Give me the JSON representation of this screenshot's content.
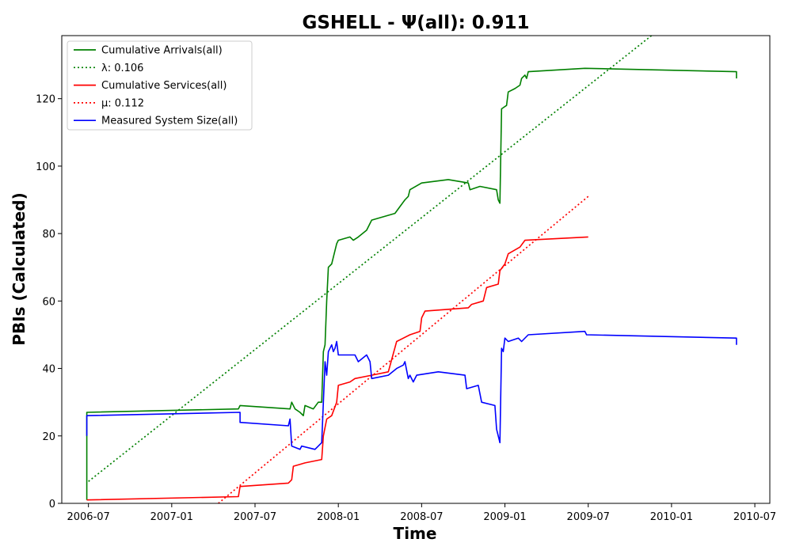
{
  "chart_data": {
    "type": "line",
    "title": "GSHELL -  Ψ(all): 0.911",
    "xlabel": "Time",
    "ylabel": "PBIs (Calculated)",
    "x_ticks": [
      "2006-07",
      "2007-01",
      "2007-07",
      "2008-01",
      "2008-07",
      "2009-01",
      "2009-07",
      "2010-01",
      "2010-07"
    ],
    "x_tick_values": [
      2006.5,
      2007.0,
      2007.5,
      2008.0,
      2008.5,
      2009.0,
      2009.5,
      2010.0,
      2010.5
    ],
    "xlim": [
      2006.34,
      2010.59
    ],
    "y_ticks": [
      0,
      20,
      40,
      60,
      80,
      100,
      120
    ],
    "ylim": [
      0,
      138.7
    ],
    "legend_position": "upper-left",
    "grid": false,
    "series": [
      {
        "name": "Cumulative Arrivals(all)",
        "color": "#008000",
        "style": "solid",
        "points": [
          [
            2006.49,
            1
          ],
          [
            2006.49,
            27
          ],
          [
            2007.4,
            28
          ],
          [
            2007.41,
            29
          ],
          [
            2007.71,
            28
          ],
          [
            2007.72,
            30
          ],
          [
            2007.74,
            28
          ],
          [
            2007.77,
            27
          ],
          [
            2007.79,
            26
          ],
          [
            2007.8,
            29
          ],
          [
            2007.85,
            28
          ],
          [
            2007.88,
            30
          ],
          [
            2007.9,
            30
          ],
          [
            2007.91,
            45
          ],
          [
            2007.92,
            47
          ],
          [
            2007.93,
            60
          ],
          [
            2007.94,
            70
          ],
          [
            2007.96,
            71
          ],
          [
            2007.97,
            73
          ],
          [
            2007.98,
            75
          ],
          [
            2007.99,
            77
          ],
          [
            2008.0,
            78
          ],
          [
            2008.07,
            79
          ],
          [
            2008.09,
            78
          ],
          [
            2008.12,
            79
          ],
          [
            2008.17,
            81
          ],
          [
            2008.2,
            84
          ],
          [
            2008.34,
            86
          ],
          [
            2008.37,
            88
          ],
          [
            2008.4,
            90
          ],
          [
            2008.42,
            91
          ],
          [
            2008.43,
            93
          ],
          [
            2008.5,
            95
          ],
          [
            2008.66,
            96
          ],
          [
            2008.78,
            95
          ],
          [
            2008.79,
            93
          ],
          [
            2008.85,
            94
          ],
          [
            2008.95,
            93
          ],
          [
            2008.96,
            90
          ],
          [
            2008.97,
            89
          ],
          [
            2008.98,
            117
          ],
          [
            2009.01,
            118
          ],
          [
            2009.02,
            122
          ],
          [
            2009.06,
            123
          ],
          [
            2009.09,
            124
          ],
          [
            2009.1,
            126
          ],
          [
            2009.12,
            127
          ],
          [
            2009.13,
            126
          ],
          [
            2009.14,
            128
          ],
          [
            2009.48,
            129
          ],
          [
            2010.39,
            128
          ],
          [
            2010.39,
            126
          ]
        ]
      },
      {
        "name": "λ: 0.106",
        "color": "#008000",
        "style": "dotted",
        "points": [
          [
            2006.5,
            6.5
          ],
          [
            2009.88,
            138.7
          ]
        ]
      },
      {
        "name": "Cumulative Services(all)",
        "color": "#ff0000",
        "style": "solid",
        "points": [
          [
            2006.49,
            1
          ],
          [
            2007.4,
            2
          ],
          [
            2007.41,
            5
          ],
          [
            2007.7,
            6
          ],
          [
            2007.72,
            7
          ],
          [
            2007.73,
            11
          ],
          [
            2007.8,
            12
          ],
          [
            2007.9,
            13
          ],
          [
            2007.91,
            20
          ],
          [
            2007.93,
            25
          ],
          [
            2007.96,
            26
          ],
          [
            2007.99,
            30
          ],
          [
            2008.0,
            35
          ],
          [
            2008.07,
            36
          ],
          [
            2008.1,
            37
          ],
          [
            2008.2,
            38
          ],
          [
            2008.3,
            39
          ],
          [
            2008.35,
            48
          ],
          [
            2008.43,
            50
          ],
          [
            2008.49,
            51
          ],
          [
            2008.5,
            55
          ],
          [
            2008.52,
            57
          ],
          [
            2008.78,
            58
          ],
          [
            2008.8,
            59
          ],
          [
            2008.87,
            60
          ],
          [
            2008.88,
            62
          ],
          [
            2008.89,
            64
          ],
          [
            2008.96,
            65
          ],
          [
            2008.97,
            69
          ],
          [
            2009.0,
            71
          ],
          [
            2009.02,
            74
          ],
          [
            2009.09,
            76
          ],
          [
            2009.12,
            78
          ],
          [
            2009.5,
            79
          ]
        ]
      },
      {
        "name": "μ: 0.112",
        "color": "#ff0000",
        "style": "dotted",
        "points": [
          [
            2007.28,
            0
          ],
          [
            2009.5,
            91
          ]
        ]
      },
      {
        "name": "Measured System Size(all)",
        "color": "#0000ff",
        "style": "solid",
        "points": [
          [
            2006.49,
            20
          ],
          [
            2006.49,
            26
          ],
          [
            2007.41,
            27
          ],
          [
            2007.41,
            24
          ],
          [
            2007.7,
            23
          ],
          [
            2007.71,
            25
          ],
          [
            2007.72,
            17
          ],
          [
            2007.77,
            16
          ],
          [
            2007.78,
            17
          ],
          [
            2007.86,
            16
          ],
          [
            2007.9,
            18
          ],
          [
            2007.91,
            30
          ],
          [
            2007.92,
            42
          ],
          [
            2007.93,
            38
          ],
          [
            2007.94,
            45
          ],
          [
            2007.96,
            47
          ],
          [
            2007.97,
            45
          ],
          [
            2007.98,
            46
          ],
          [
            2007.99,
            48
          ],
          [
            2008.0,
            44
          ],
          [
            2008.1,
            44
          ],
          [
            2008.12,
            42
          ],
          [
            2008.17,
            44
          ],
          [
            2008.19,
            42
          ],
          [
            2008.2,
            37
          ],
          [
            2008.3,
            38
          ],
          [
            2008.35,
            40
          ],
          [
            2008.39,
            41
          ],
          [
            2008.4,
            42
          ],
          [
            2008.42,
            37
          ],
          [
            2008.43,
            38
          ],
          [
            2008.45,
            36
          ],
          [
            2008.47,
            38
          ],
          [
            2008.6,
            39
          ],
          [
            2008.76,
            38
          ],
          [
            2008.77,
            34
          ],
          [
            2008.84,
            35
          ],
          [
            2008.86,
            30
          ],
          [
            2008.94,
            29
          ],
          [
            2008.95,
            22
          ],
          [
            2008.97,
            18
          ],
          [
            2008.98,
            46
          ],
          [
            2008.99,
            45
          ],
          [
            2009.0,
            49
          ],
          [
            2009.02,
            48
          ],
          [
            2009.08,
            49
          ],
          [
            2009.1,
            48
          ],
          [
            2009.14,
            50
          ],
          [
            2009.48,
            51
          ],
          [
            2009.49,
            50
          ],
          [
            2010.39,
            49
          ],
          [
            2010.39,
            47
          ]
        ]
      }
    ]
  }
}
